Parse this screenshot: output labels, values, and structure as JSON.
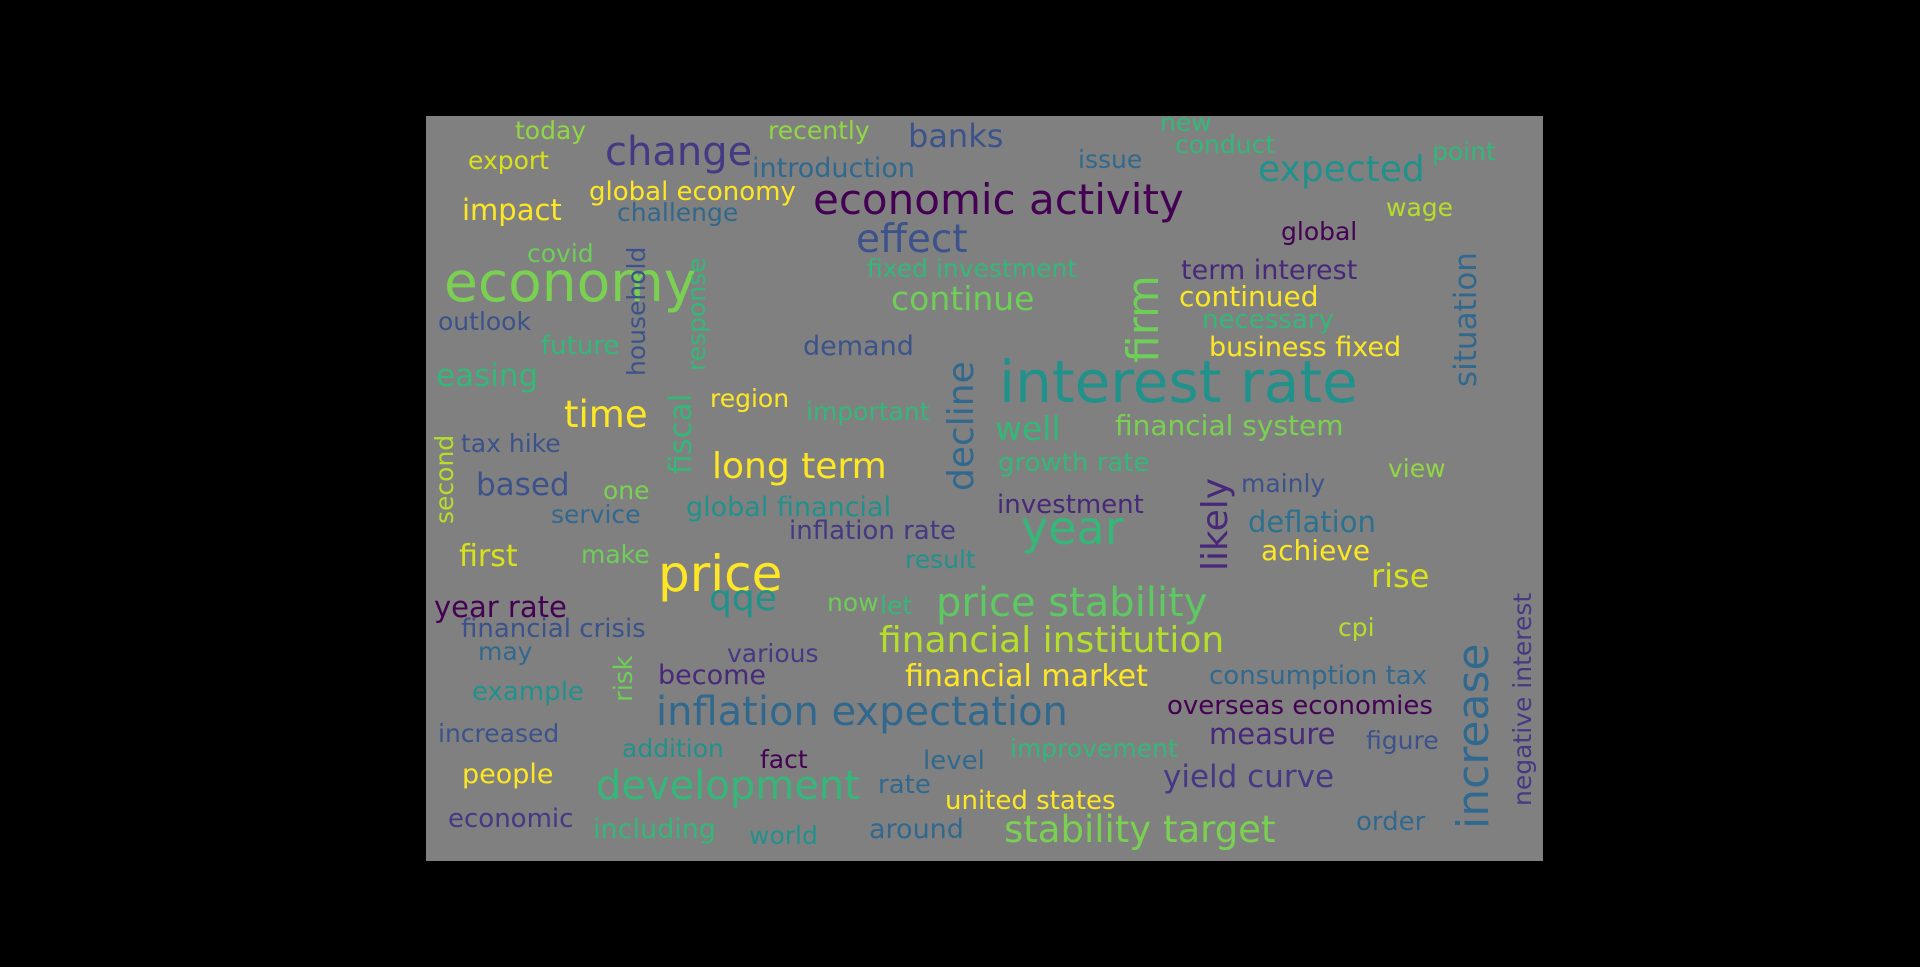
{
  "palette": {
    "background": "#808080",
    "frame": "#000000",
    "dark_purple": "#440154",
    "indigo": "#3b528b",
    "blue": "#31688e",
    "teal": "#21918c",
    "green": "#35b779",
    "lime": "#90d743",
    "yellow": "#fde725"
  },
  "words": [
    {
      "text": "today",
      "color": "#90d743"
    },
    {
      "text": "recently",
      "color": "#90d743"
    },
    {
      "text": "banks",
      "color": "#3b528b"
    },
    {
      "text": "new",
      "color": "#35b779"
    },
    {
      "text": "conduct",
      "color": "#35b779"
    },
    {
      "text": "point",
      "color": "#35b779"
    },
    {
      "text": "export",
      "color": "#d8e219"
    },
    {
      "text": "change",
      "color": "#443983"
    },
    {
      "text": "introduction",
      "color": "#31688e"
    },
    {
      "text": "issue",
      "color": "#31688e"
    },
    {
      "text": "expected",
      "color": "#21918c"
    },
    {
      "text": "global economy",
      "color": "#fde725"
    },
    {
      "text": "economic activity",
      "color": "#440154"
    },
    {
      "text": "impact",
      "color": "#fde725"
    },
    {
      "text": "challenge",
      "color": "#31688e"
    },
    {
      "text": "wage",
      "color": "#b5de2b"
    },
    {
      "text": "global",
      "color": "#440154"
    },
    {
      "text": "effect",
      "color": "#3b528b"
    },
    {
      "text": "covid",
      "color": "#6ece58"
    },
    {
      "text": "fixed investment",
      "color": "#35b779"
    },
    {
      "text": "term interest",
      "color": "#482878"
    },
    {
      "text": "economy",
      "color": "#7ad151"
    },
    {
      "text": "continue",
      "color": "#6ece58"
    },
    {
      "text": "continued",
      "color": "#fde725"
    },
    {
      "text": "outlook",
      "color": "#3b528b"
    },
    {
      "text": "necessary",
      "color": "#35b779"
    },
    {
      "text": "future",
      "color": "#35b779"
    },
    {
      "text": "demand",
      "color": "#3b528b"
    },
    {
      "text": "business fixed",
      "color": "#fde725"
    },
    {
      "text": "easing",
      "color": "#35b779"
    },
    {
      "text": "interest rate",
      "color": "#21918c"
    },
    {
      "text": "region",
      "color": "#fde725"
    },
    {
      "text": "time",
      "color": "#fde725"
    },
    {
      "text": "important",
      "color": "#35b779"
    },
    {
      "text": "well",
      "color": "#35b779"
    },
    {
      "text": "financial system",
      "color": "#7ad151"
    },
    {
      "text": "tax hike",
      "color": "#3b528b"
    },
    {
      "text": "long term",
      "color": "#fde725"
    },
    {
      "text": "growth rate",
      "color": "#35b779"
    },
    {
      "text": "view",
      "color": "#90d743"
    },
    {
      "text": "based",
      "color": "#3b528b"
    },
    {
      "text": "one",
      "color": "#7ad151"
    },
    {
      "text": "mainly",
      "color": "#3b528b"
    },
    {
      "text": "service",
      "color": "#31688e"
    },
    {
      "text": "global financial",
      "color": "#21918c"
    },
    {
      "text": "investment",
      "color": "#482878"
    },
    {
      "text": "deflation",
      "color": "#2c728e"
    },
    {
      "text": "inflation rate",
      "color": "#443983"
    },
    {
      "text": "year",
      "color": "#35b779"
    },
    {
      "text": "first",
      "color": "#d8e219"
    },
    {
      "text": "make",
      "color": "#6ece58"
    },
    {
      "text": "result",
      "color": "#21918c"
    },
    {
      "text": "achieve",
      "color": "#fde725"
    },
    {
      "text": "price",
      "color": "#fde725"
    },
    {
      "text": "rise",
      "color": "#d8e219"
    },
    {
      "text": "qqe",
      "color": "#21918c"
    },
    {
      "text": "now",
      "color": "#6ece58"
    },
    {
      "text": "let",
      "color": "#35b779"
    },
    {
      "text": "price stability",
      "color": "#5ec962"
    },
    {
      "text": "year rate",
      "color": "#440154"
    },
    {
      "text": "financial crisis",
      "color": "#3b528b"
    },
    {
      "text": "cpi",
      "color": "#b5de2b"
    },
    {
      "text": "financial institution",
      "color": "#b5de2b"
    },
    {
      "text": "may",
      "color": "#31688e"
    },
    {
      "text": "various",
      "color": "#443983"
    },
    {
      "text": "become",
      "color": "#482878"
    },
    {
      "text": "financial market",
      "color": "#fde725"
    },
    {
      "text": "consumption tax",
      "color": "#31688e"
    },
    {
      "text": "example",
      "color": "#21918c"
    },
    {
      "text": "inflation expectation",
      "color": "#31688e"
    },
    {
      "text": "overseas economies",
      "color": "#440154"
    },
    {
      "text": "increased",
      "color": "#3b528b"
    },
    {
      "text": "addition",
      "color": "#21918c"
    },
    {
      "text": "measure",
      "color": "#482878"
    },
    {
      "text": "figure",
      "color": "#3b528b"
    },
    {
      "text": "fact",
      "color": "#440154"
    },
    {
      "text": "level",
      "color": "#31688e"
    },
    {
      "text": "improvement",
      "color": "#35b779"
    },
    {
      "text": "people",
      "color": "#fde725"
    },
    {
      "text": "development",
      "color": "#35b779"
    },
    {
      "text": "rate",
      "color": "#31688e"
    },
    {
      "text": "yield curve",
      "color": "#443983"
    },
    {
      "text": "united states",
      "color": "#fde725"
    },
    {
      "text": "economic",
      "color": "#443983"
    },
    {
      "text": "including",
      "color": "#35b779"
    },
    {
      "text": "world",
      "color": "#21918c"
    },
    {
      "text": "around",
      "color": "#31688e"
    },
    {
      "text": "stability target",
      "color": "#7ad151"
    },
    {
      "text": "order",
      "color": "#31688e"
    },
    {
      "text": "household",
      "color": "#3b528b"
    },
    {
      "text": "response",
      "color": "#35b779"
    },
    {
      "text": "fiscal",
      "color": "#35b779"
    },
    {
      "text": "firm",
      "color": "#6ece58"
    },
    {
      "text": "decline",
      "color": "#31688e"
    },
    {
      "text": "second",
      "color": "#b5de2b"
    },
    {
      "text": "likely",
      "color": "#482878"
    },
    {
      "text": "risk",
      "color": "#6ece58"
    },
    {
      "text": "situation",
      "color": "#31688e"
    },
    {
      "text": "increase",
      "color": "#31688e"
    },
    {
      "text": "negative interest",
      "color": "#443983"
    }
  ]
}
